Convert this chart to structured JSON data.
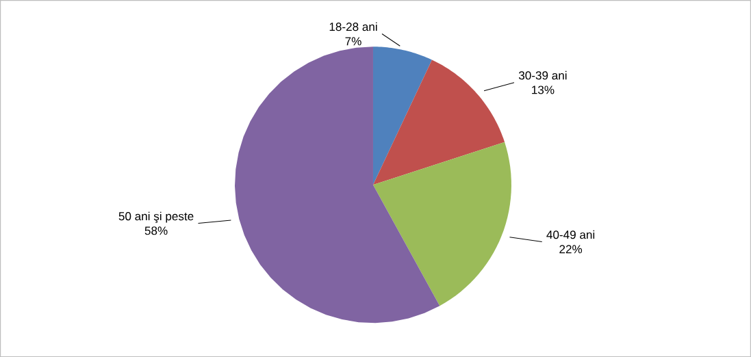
{
  "chart_data": {
    "type": "pie",
    "categories": [
      "18-28 ani",
      "30-39 ani",
      "40-49 ani",
      "50 ani şi peste"
    ],
    "values": [
      7,
      13,
      22,
      58
    ],
    "value_labels": [
      "7%",
      "13%",
      "22%",
      "58%"
    ],
    "colors": [
      "#4f81bd",
      "#c0504d",
      "#9bbb59",
      "#8064a2"
    ]
  }
}
